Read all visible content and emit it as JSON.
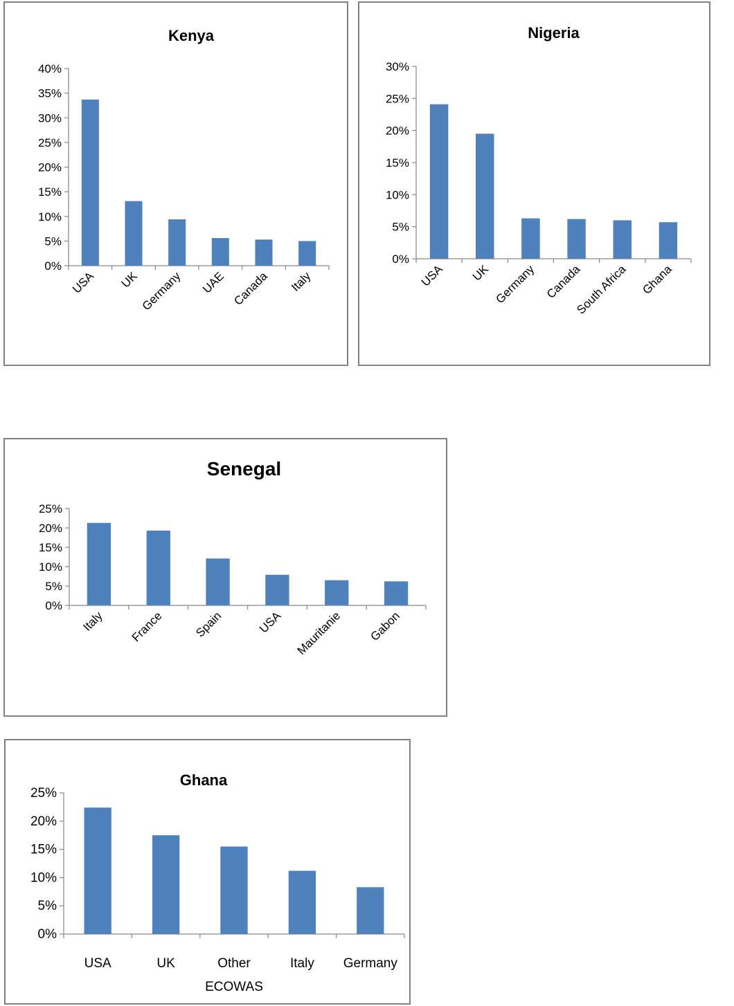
{
  "colors": {
    "bar": "#4f81bd",
    "axis": "#868686",
    "border": "#7f7f7f"
  },
  "chart_data": [
    {
      "id": "kenya",
      "type": "bar",
      "title": "Kenya",
      "categories": [
        "USA",
        "UK",
        "Germany",
        "UAE",
        "Canada",
        "Italy"
      ],
      "values": [
        0.337,
        0.131,
        0.094,
        0.056,
        0.053,
        0.05
      ],
      "yticks": [
        "0%",
        "5%",
        "10%",
        "15%",
        "20%",
        "25%",
        "30%",
        "35%",
        "40%"
      ],
      "ylim": [
        0,
        0.4
      ],
      "grid": false,
      "legend": "none"
    },
    {
      "id": "nigeria",
      "type": "bar",
      "title": "Nigeria",
      "categories": [
        "USA",
        "UK",
        "Germany",
        "Canada",
        "South Africa",
        "Ghana"
      ],
      "values": [
        0.241,
        0.195,
        0.063,
        0.062,
        0.06,
        0.057
      ],
      "yticks": [
        "0%",
        "5%",
        "10%",
        "15%",
        "20%",
        "25%",
        "30%"
      ],
      "ylim": [
        0,
        0.3
      ],
      "grid": false,
      "legend": "none"
    },
    {
      "id": "senegal",
      "type": "bar",
      "title": "Senegal",
      "categories": [
        "Italy",
        "France",
        "Spain",
        "USA",
        "Mauritanie",
        "Gabon"
      ],
      "values": [
        0.213,
        0.193,
        0.121,
        0.079,
        0.065,
        0.062
      ],
      "yticks": [
        "0%",
        "5%",
        "10%",
        "15%",
        "20%",
        "25%"
      ],
      "ylim": [
        0,
        0.25
      ],
      "grid": false,
      "legend": "none"
    },
    {
      "id": "ghana",
      "type": "bar",
      "title": "Ghana",
      "categories": [
        "USA",
        "UK",
        "Other ECOWAS",
        "Italy",
        "Germany"
      ],
      "values": [
        0.224,
        0.175,
        0.155,
        0.112,
        0.083
      ],
      "yticks": [
        "0%",
        "5%",
        "10%",
        "15%",
        "20%",
        "25%"
      ],
      "ylim": [
        0,
        0.25
      ],
      "grid": false,
      "legend": "none"
    }
  ]
}
